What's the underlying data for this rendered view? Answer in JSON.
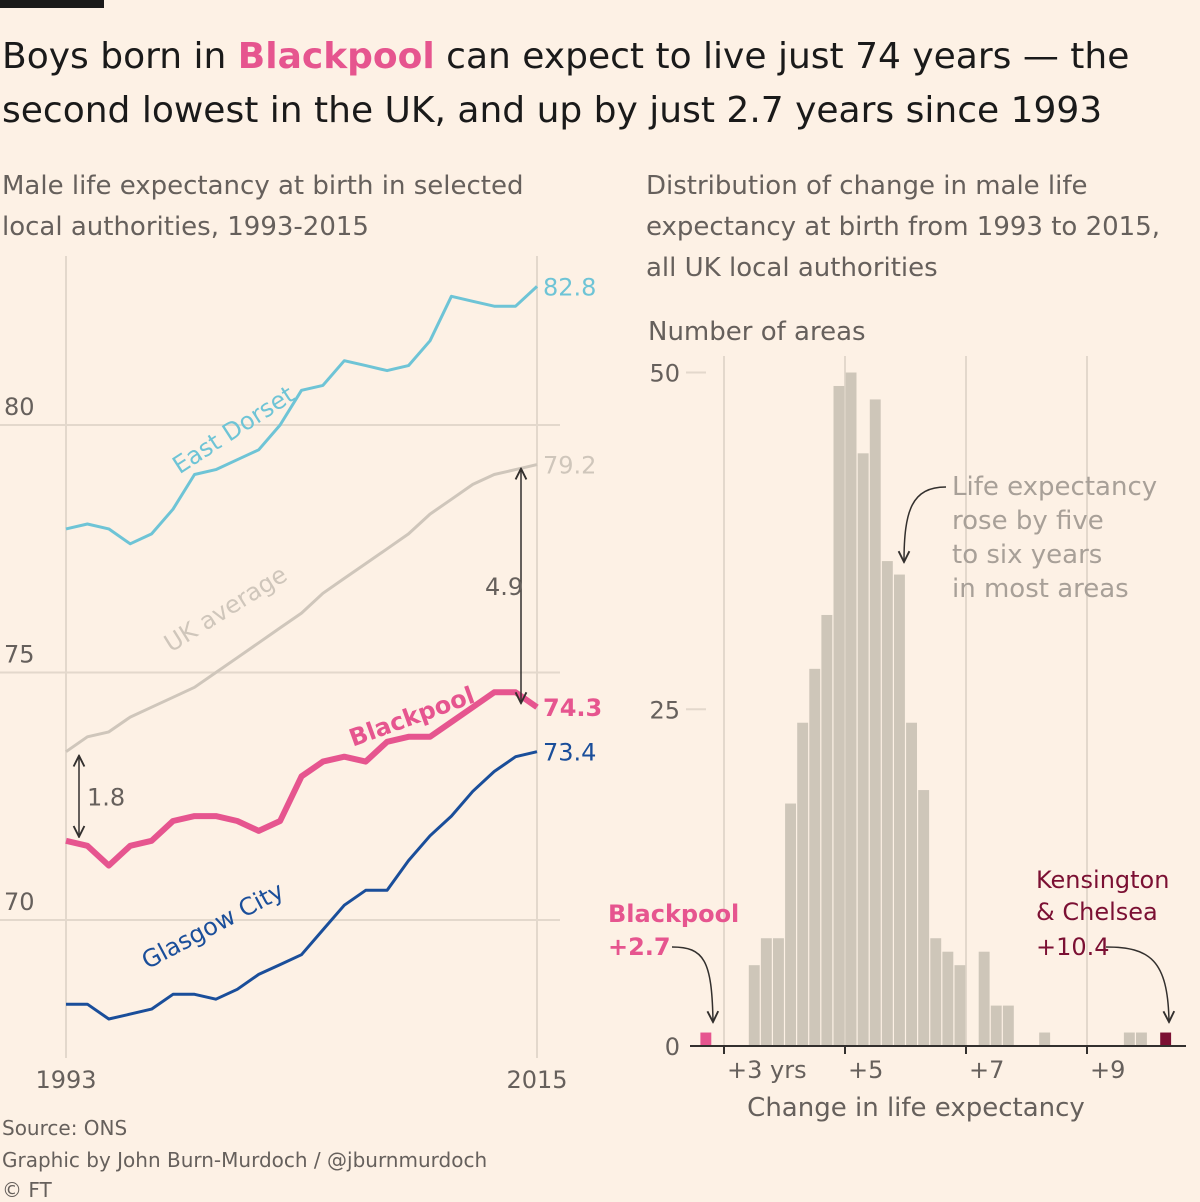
{
  "headline": {
    "part1": "Boys born in ",
    "highlight": "Blackpool",
    "part2": " can expect to live just 74 years — the second lowest in the UK, and up by just 2.7 years since 1993"
  },
  "colors": {
    "background": "#fdf1e5",
    "east_dorset": "#6ec4d6",
    "uk_average": "#cfc6bb",
    "blackpool": "#e6558f",
    "glasgow": "#1a4e9a",
    "kensington": "#7b1033",
    "histogram": "#cec6b9",
    "text": "#33302e",
    "muted": "#66605c",
    "grid": "#e3d8cc"
  },
  "chart_data": [
    {
      "type": "line",
      "title": "Male life expectancy at birth in selected local authorities, 1993-2015",
      "x": [
        1993,
        1994,
        1995,
        1996,
        1997,
        1998,
        1999,
        2000,
        2001,
        2002,
        2003,
        2004,
        2005,
        2006,
        2007,
        2008,
        2009,
        2010,
        2011,
        2012,
        2013,
        2014,
        2015
      ],
      "x_tick_labels": [
        "1993",
        "2015"
      ],
      "y_tick_labels": [
        "70",
        "75",
        "80"
      ],
      "ylim": [
        68,
        84
      ],
      "series": [
        {
          "name": "East Dorset",
          "end_label": "82.8",
          "values": [
            77.9,
            78.0,
            77.9,
            77.6,
            77.8,
            78.3,
            79.0,
            79.1,
            79.3,
            79.5,
            80.0,
            80.7,
            80.8,
            81.3,
            81.2,
            81.1,
            81.2,
            81.7,
            82.6,
            82.5,
            82.4,
            82.4,
            82.8
          ]
        },
        {
          "name": "UK average",
          "end_label": "79.2",
          "values": [
            73.4,
            73.7,
            73.8,
            74.1,
            74.3,
            74.5,
            74.7,
            75.0,
            75.3,
            75.6,
            75.9,
            76.2,
            76.6,
            76.9,
            77.2,
            77.5,
            77.8,
            78.2,
            78.5,
            78.8,
            79.0,
            79.1,
            79.2
          ]
        },
        {
          "name": "Blackpool",
          "end_label": "74.3",
          "values": [
            71.6,
            71.5,
            71.1,
            71.5,
            71.6,
            72.0,
            72.1,
            72.1,
            72.0,
            71.8,
            72.0,
            72.9,
            73.2,
            73.3,
            73.2,
            73.6,
            73.7,
            73.7,
            74.0,
            74.3,
            74.6,
            74.6,
            74.3
          ]
        },
        {
          "name": "Glasgow City",
          "end_label": "73.4",
          "values": [
            68.3,
            68.3,
            68.0,
            68.1,
            68.2,
            68.5,
            68.5,
            68.4,
            68.6,
            68.9,
            69.1,
            69.3,
            69.8,
            70.3,
            70.6,
            70.6,
            71.2,
            71.7,
            72.1,
            72.6,
            73.0,
            73.3,
            73.4
          ]
        }
      ],
      "annotations": [
        {
          "label": "4.9",
          "from_year": 2015,
          "from_value": 74.3,
          "to_value": 79.2
        },
        {
          "label": "1.8",
          "from_year": 1993,
          "from_value": 71.6,
          "to_value": 73.4
        }
      ]
    },
    {
      "type": "bar",
      "title": "Distribution of change in male life expectancy at birth from 1993 to 2015, all UK local authorities",
      "ylabel": "Number of areas",
      "xlabel": "Change in life expectancy",
      "bin_width": 0.2,
      "x_tick_labels": [
        "+3 yrs",
        "+5",
        "+7",
        "+9"
      ],
      "x_ticks": [
        3,
        5,
        7,
        9
      ],
      "y_tick_labels": [
        "0",
        "25",
        "50"
      ],
      "ylim": [
        0,
        52
      ],
      "bins": [
        {
          "x": 2.7,
          "value": 1,
          "highlight": "blackpool"
        },
        {
          "x": 3.5,
          "value": 6
        },
        {
          "x": 3.7,
          "value": 8
        },
        {
          "x": 3.9,
          "value": 8
        },
        {
          "x": 4.1,
          "value": 18
        },
        {
          "x": 4.3,
          "value": 24
        },
        {
          "x": 4.5,
          "value": 28
        },
        {
          "x": 4.7,
          "value": 32
        },
        {
          "x": 4.9,
          "value": 49
        },
        {
          "x": 5.1,
          "value": 50
        },
        {
          "x": 5.3,
          "value": 44
        },
        {
          "x": 5.5,
          "value": 48
        },
        {
          "x": 5.7,
          "value": 36
        },
        {
          "x": 5.9,
          "value": 35
        },
        {
          "x": 6.1,
          "value": 24
        },
        {
          "x": 6.3,
          "value": 19
        },
        {
          "x": 6.5,
          "value": 8
        },
        {
          "x": 6.7,
          "value": 7
        },
        {
          "x": 6.9,
          "value": 6
        },
        {
          "x": 7.3,
          "value": 7
        },
        {
          "x": 7.5,
          "value": 3
        },
        {
          "x": 7.7,
          "value": 3
        },
        {
          "x": 8.3,
          "value": 1
        },
        {
          "x": 9.7,
          "value": 1
        },
        {
          "x": 9.9,
          "value": 1
        },
        {
          "x": 10.3,
          "value": 1,
          "highlight": "kensington"
        }
      ],
      "annotations": [
        {
          "label": "Life expectancy rose by five to six years in most areas"
        },
        {
          "label": "Blackpool",
          "value_label": "+2.7"
        },
        {
          "label": "Kensington & Chelsea",
          "value_label": "+10.4"
        }
      ]
    }
  ],
  "footer": {
    "source": "Source: ONS",
    "credit": "Graphic by John Burn-Murdoch / @jburnmurdoch",
    "copyright": "© FT"
  }
}
